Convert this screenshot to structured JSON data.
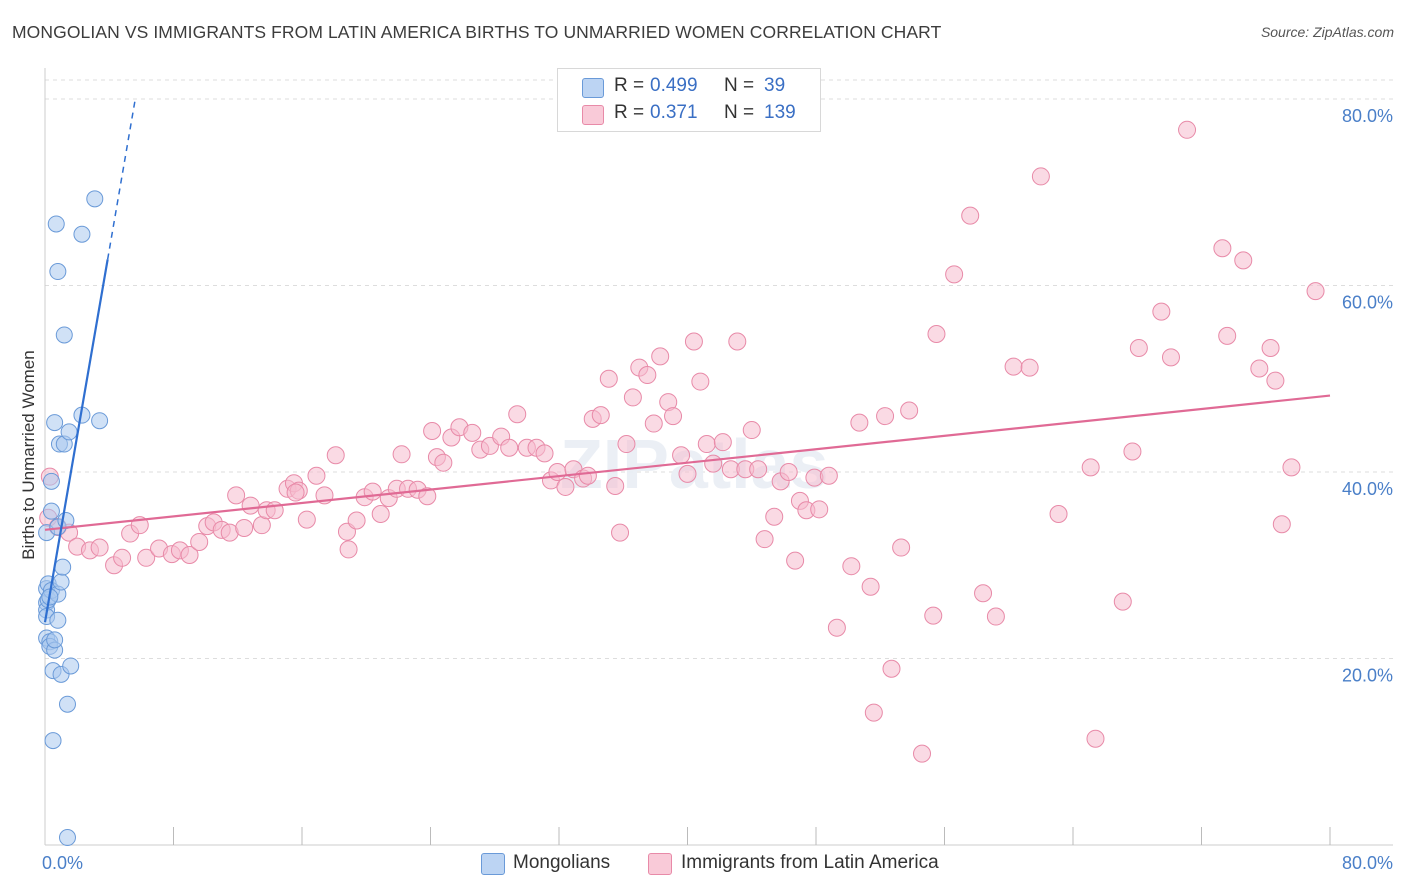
{
  "title": "MONGOLIAN VS IMMIGRANTS FROM LATIN AMERICA BIRTHS TO UNMARRIED WOMEN CORRELATION CHART",
  "source": "Source: ZipAtlas.com",
  "watermark": "ZIPatlas",
  "colors": {
    "blue_fill": "#a9c8ef",
    "blue_stroke": "#6a9ad8",
    "blue_line": "#2f6fd0",
    "pink_fill": "#f6bccd",
    "pink_stroke": "#e88aa8",
    "pink_line": "#e06a95",
    "tick_text": "#4a7fc8",
    "grid": "#dddddd"
  },
  "legend": {
    "rows": [
      {
        "r_label": "R =",
        "r_value": "0.499",
        "n_label": "N =",
        "n_value": "39",
        "color": "blue"
      },
      {
        "r_label": "R =",
        "r_value": "0.371",
        "n_label": "N =",
        "n_value": "139",
        "color": "pink"
      }
    ]
  },
  "bottom_legend": [
    "Mongolians",
    "Immigrants from Latin America"
  ],
  "chart_data": {
    "type": "scatter",
    "title": "MONGOLIAN VS IMMIGRANTS FROM LATIN AMERICA BIRTHS TO UNMARRIED WOMEN CORRELATION CHART",
    "xlabel": "",
    "ylabel": "Births to Unmarried Women",
    "x_tick_labels": [
      "0.0%",
      "80.0%"
    ],
    "y_tick_labels": [
      "20.0%",
      "40.0%",
      "60.0%",
      "80.0%"
    ],
    "xlim": [
      0,
      80
    ],
    "ylim": [
      0,
      83
    ],
    "y_gridlines": [
      20,
      40,
      60,
      80
    ],
    "grid": true,
    "legend_position": "top-center",
    "series": [
      {
        "name": "Mongolians",
        "color": "blue",
        "trend": {
          "x1": 0,
          "y1": 23.9,
          "x2": 3.9,
          "y2": 62.8,
          "dashed_to_x": 5.6,
          "dashed_to_y": 79.8
        },
        "points": [
          [
            0.1,
            33.5
          ],
          [
            0.1,
            27.5
          ],
          [
            0.1,
            26.0
          ],
          [
            0.1,
            25.2
          ],
          [
            0.1,
            24.5
          ],
          [
            0.1,
            22.2
          ],
          [
            0.2,
            26.3
          ],
          [
            0.2,
            28.0
          ],
          [
            0.3,
            21.8
          ],
          [
            0.3,
            21.3
          ],
          [
            0.4,
            35.8
          ],
          [
            0.4,
            39.0
          ],
          [
            0.4,
            27.3
          ],
          [
            0.5,
            18.7
          ],
          [
            0.5,
            11.2
          ],
          [
            0.6,
            45.3
          ],
          [
            0.6,
            20.9
          ],
          [
            0.7,
            66.6
          ],
          [
            0.8,
            61.5
          ],
          [
            0.8,
            34.1
          ],
          [
            0.8,
            24.1
          ],
          [
            0.8,
            26.9
          ],
          [
            0.9,
            43.0
          ],
          [
            1.0,
            18.3
          ],
          [
            1.0,
            28.2
          ],
          [
            1.1,
            29.8
          ],
          [
            1.2,
            54.7
          ],
          [
            1.2,
            43.0
          ],
          [
            1.3,
            34.8
          ],
          [
            1.4,
            15.1
          ],
          [
            1.5,
            44.3
          ],
          [
            1.6,
            19.2
          ],
          [
            2.3,
            65.5
          ],
          [
            2.3,
            46.1
          ],
          [
            3.1,
            69.3
          ],
          [
            3.4,
            45.5
          ],
          [
            1.4,
            0.8
          ],
          [
            0.6,
            22.0
          ],
          [
            0.3,
            26.6
          ]
        ]
      },
      {
        "name": "Immigrants from Latin America",
        "color": "pink",
        "trend": {
          "x1": 0,
          "y1": 33.8,
          "x2": 80,
          "y2": 48.2
        },
        "points": [
          [
            0.2,
            35.1
          ],
          [
            0.3,
            39.5
          ],
          [
            0.8,
            34.1
          ],
          [
            1.5,
            33.5
          ],
          [
            2.0,
            32.0
          ],
          [
            2.8,
            31.6
          ],
          [
            3.4,
            31.9
          ],
          [
            4.3,
            30.0
          ],
          [
            4.8,
            30.8
          ],
          [
            5.3,
            33.4
          ],
          [
            5.9,
            34.3
          ],
          [
            6.3,
            30.8
          ],
          [
            7.1,
            31.8
          ],
          [
            7.9,
            31.2
          ],
          [
            8.4,
            31.6
          ],
          [
            9.0,
            31.1
          ],
          [
            9.6,
            32.5
          ],
          [
            10.1,
            34.2
          ],
          [
            10.5,
            34.6
          ],
          [
            11.0,
            33.8
          ],
          [
            11.5,
            33.5
          ],
          [
            11.9,
            37.5
          ],
          [
            12.4,
            34.0
          ],
          [
            12.8,
            36.4
          ],
          [
            13.5,
            34.3
          ],
          [
            13.8,
            35.9
          ],
          [
            14.3,
            35.9
          ],
          [
            15.1,
            38.2
          ],
          [
            15.5,
            38.8
          ],
          [
            15.8,
            38.0
          ],
          [
            16.3,
            34.9
          ],
          [
            16.9,
            39.6
          ],
          [
            17.4,
            37.5
          ],
          [
            18.1,
            41.8
          ],
          [
            18.8,
            33.6
          ],
          [
            18.9,
            31.7
          ],
          [
            19.4,
            34.8
          ],
          [
            19.9,
            37.3
          ],
          [
            20.4,
            37.9
          ],
          [
            20.9,
            35.5
          ],
          [
            21.4,
            37.2
          ],
          [
            21.9,
            38.2
          ],
          [
            22.2,
            41.9
          ],
          [
            22.6,
            38.2
          ],
          [
            23.2,
            38.1
          ],
          [
            23.8,
            37.4
          ],
          [
            24.1,
            44.4
          ],
          [
            24.4,
            41.6
          ],
          [
            24.8,
            41.0
          ],
          [
            25.3,
            43.7
          ],
          [
            25.8,
            44.8
          ],
          [
            26.6,
            44.2
          ],
          [
            27.1,
            42.4
          ],
          [
            27.7,
            42.8
          ],
          [
            28.4,
            43.8
          ],
          [
            28.9,
            42.6
          ],
          [
            29.4,
            46.2
          ],
          [
            30.0,
            42.6
          ],
          [
            30.6,
            42.6
          ],
          [
            31.1,
            42.0
          ],
          [
            31.5,
            39.1
          ],
          [
            31.9,
            40.0
          ],
          [
            32.4,
            38.4
          ],
          [
            32.9,
            40.3
          ],
          [
            33.5,
            39.3
          ],
          [
            33.8,
            39.6
          ],
          [
            34.1,
            45.7
          ],
          [
            34.6,
            46.1
          ],
          [
            35.1,
            50.0
          ],
          [
            35.5,
            38.5
          ],
          [
            35.8,
            33.5
          ],
          [
            36.2,
            43.0
          ],
          [
            36.6,
            48.0
          ],
          [
            37.0,
            51.2
          ],
          [
            37.5,
            50.4
          ],
          [
            37.9,
            45.2
          ],
          [
            38.3,
            52.4
          ],
          [
            38.8,
            47.5
          ],
          [
            39.1,
            46.0
          ],
          [
            39.6,
            41.8
          ],
          [
            40.0,
            39.8
          ],
          [
            40.4,
            54.0
          ],
          [
            40.8,
            49.7
          ],
          [
            41.2,
            43.0
          ],
          [
            41.6,
            40.9
          ],
          [
            42.2,
            43.2
          ],
          [
            42.7,
            40.3
          ],
          [
            43.1,
            54.0
          ],
          [
            43.6,
            40.3
          ],
          [
            44.0,
            44.5
          ],
          [
            44.4,
            40.3
          ],
          [
            44.8,
            32.8
          ],
          [
            45.4,
            35.2
          ],
          [
            45.8,
            39.0
          ],
          [
            46.3,
            40.0
          ],
          [
            46.7,
            30.5
          ],
          [
            47.0,
            36.9
          ],
          [
            47.4,
            35.9
          ],
          [
            47.9,
            39.4
          ],
          [
            48.2,
            36.0
          ],
          [
            48.8,
            39.6
          ],
          [
            49.3,
            23.3
          ],
          [
            50.2,
            29.9
          ],
          [
            50.7,
            45.3
          ],
          [
            51.4,
            27.7
          ],
          [
            51.6,
            14.2
          ],
          [
            52.3,
            46.0
          ],
          [
            52.7,
            18.9
          ],
          [
            53.3,
            31.9
          ],
          [
            53.8,
            46.6
          ],
          [
            54.6,
            9.8
          ],
          [
            55.3,
            24.6
          ],
          [
            55.5,
            54.8
          ],
          [
            56.6,
            61.2
          ],
          [
            57.6,
            67.5
          ],
          [
            58.4,
            27.0
          ],
          [
            59.2,
            24.5
          ],
          [
            60.3,
            51.3
          ],
          [
            61.3,
            51.2
          ],
          [
            62.0,
            71.7
          ],
          [
            63.1,
            35.5
          ],
          [
            65.1,
            40.5
          ],
          [
            65.4,
            11.4
          ],
          [
            67.1,
            26.1
          ],
          [
            67.7,
            42.2
          ],
          [
            68.1,
            53.3
          ],
          [
            69.5,
            57.2
          ],
          [
            70.1,
            52.3
          ],
          [
            71.1,
            76.7
          ],
          [
            73.3,
            64.0
          ],
          [
            73.6,
            54.6
          ],
          [
            74.6,
            62.7
          ],
          [
            75.6,
            51.1
          ],
          [
            76.3,
            53.3
          ],
          [
            76.6,
            49.8
          ],
          [
            77.0,
            34.4
          ],
          [
            77.6,
            40.5
          ],
          [
            79.1,
            59.4
          ],
          [
            15.6,
            37.8
          ]
        ]
      }
    ]
  }
}
